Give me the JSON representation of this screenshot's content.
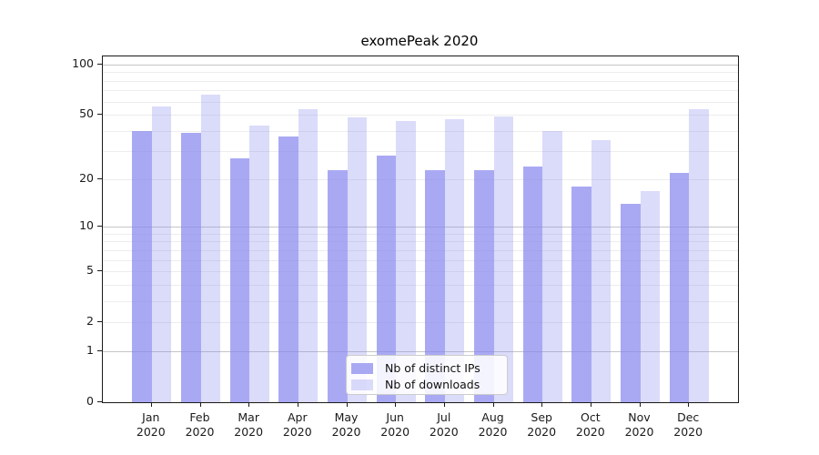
{
  "title": "exomePeak 2020",
  "legend": {
    "items": [
      {
        "label": "Nb of distinct IPs",
        "color": "rgba(136,136,238,0.72)"
      },
      {
        "label": "Nb of downloads",
        "color": "rgba(136,136,238,0.30)"
      }
    ]
  },
  "colors": {
    "distinct_ips_bar": "rgba(136,136,238,0.72)",
    "downloads_bar": "rgba(136,136,238,0.30)",
    "major_gridline": "#c6c6c6",
    "minor_gridline": "#ededed",
    "axis": "#1a1a1a",
    "legend_border": "#cccccc"
  },
  "chart_data": {
    "type": "bar",
    "title": "exomePeak 2020",
    "categories": [
      "Jan 2020",
      "Feb 2020",
      "Mar 2020",
      "Apr 2020",
      "May 2020",
      "Jun 2020",
      "Jul 2020",
      "Aug 2020",
      "Sep 2020",
      "Oct 2020",
      "Nov 2020",
      "Dec 2020"
    ],
    "series": [
      {
        "name": "Nb of distinct IPs",
        "color": "rgba(136,136,238,0.72)",
        "values": [
          40,
          39,
          27,
          37,
          23,
          28,
          23,
          23,
          24,
          18,
          14,
          22
        ]
      },
      {
        "name": "Nb of downloads",
        "color": "rgba(136,136,238,0.30)",
        "values": [
          56,
          66,
          43,
          54,
          48,
          46,
          47,
          49,
          40,
          35,
          17,
          54
        ]
      }
    ],
    "xlabel": "",
    "ylabel": "",
    "yscale": "log1p",
    "ylim": [
      0,
      112
    ],
    "y_ticks": [
      100,
      50,
      20,
      10,
      5,
      2,
      1,
      0
    ],
    "y_gridlines_major": [
      1,
      10,
      100
    ],
    "y_gridlines_minor": [
      2,
      3,
      4,
      5,
      6,
      7,
      8,
      9,
      20,
      30,
      40,
      50,
      60,
      70,
      80,
      90
    ],
    "grid": "horizontal major+minor, on",
    "legend_position": "lower center, inside plot"
  }
}
